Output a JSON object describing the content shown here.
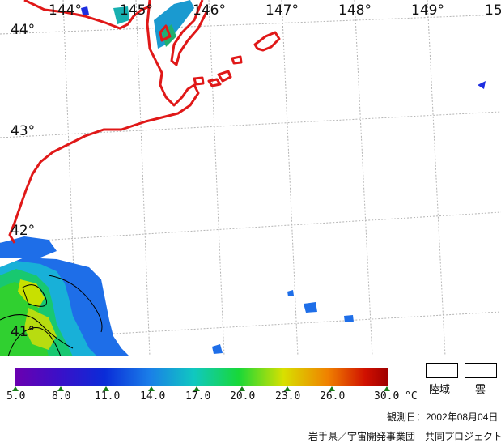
{
  "map": {
    "longitude_labels": [
      "144°",
      "145°",
      "146°",
      "147°",
      "148°",
      "149°",
      "15"
    ],
    "latitude_labels": [
      "44°",
      "43°",
      "42°",
      "41°"
    ],
    "colors": {
      "coast": "#e01818",
      "grid": "#b4b4b4",
      "land_bg": "#ffffff"
    }
  },
  "colorbar": {
    "ticks": [
      "5.0",
      "8.0",
      "11.0",
      "14.0",
      "17.0",
      "20.0",
      "23.0",
      "26.0",
      "30.0"
    ],
    "unit": "°C",
    "tick_color": "#1a7e1a"
  },
  "legend": {
    "land": "陸域",
    "cloud": "雲"
  },
  "footer": {
    "observation": "観測日：2002年08月04日",
    "credit": "岩手県／宇宙開発事業団　共同プロジェクト"
  }
}
